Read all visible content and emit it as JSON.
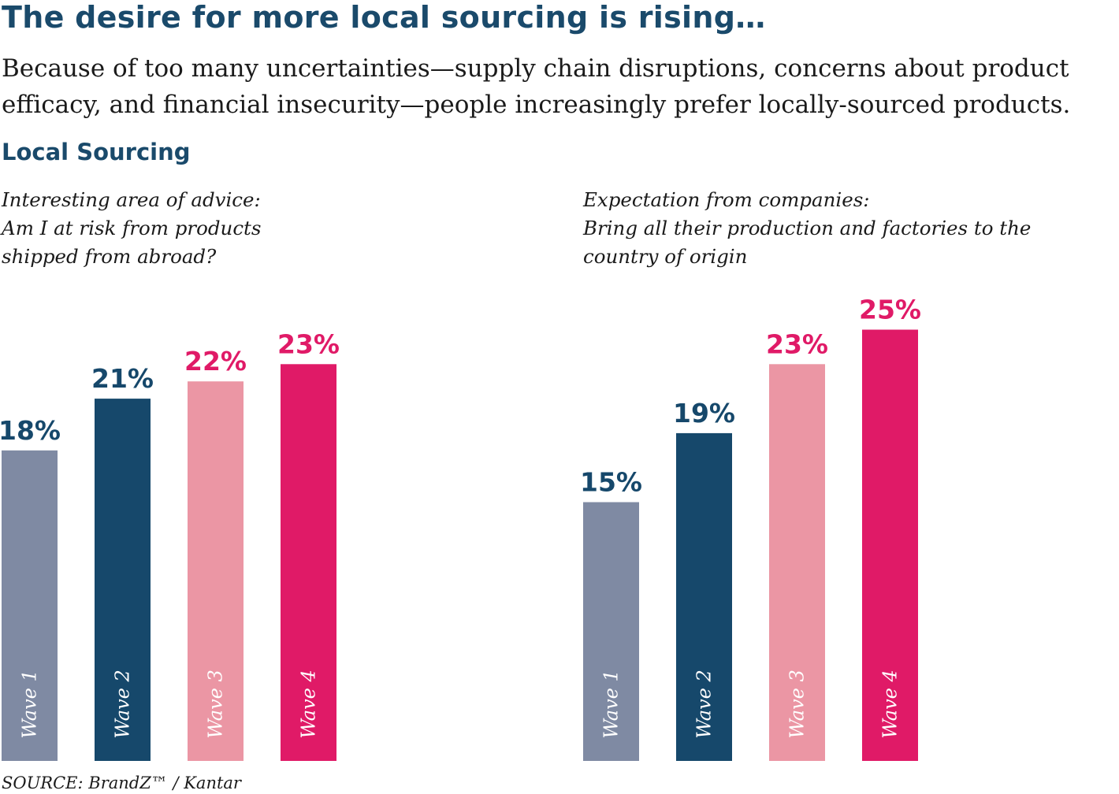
{
  "title": "The desire for more local sourcing is rising…",
  "subtitle": {
    "line1": "Because of too many uncertainties—supply chain disruptions, concerns about product",
    "line2": "efficacy, and financial insecurity—people increasingly prefer locally-sourced products."
  },
  "section_title": "Local Sourcing",
  "source": "SOURCE: BrandZ™ / Kantar",
  "colors": {
    "wave1": "#7f8aa3",
    "wave2": "#16486b",
    "wave3": "#eb96a4",
    "wave4": "#e01a67",
    "label_dark": "#16486b",
    "label_pink": "#e01a67"
  },
  "chart_data": [
    {
      "type": "bar",
      "title_lines": [
        "Interesting area of advice:",
        "Am I at risk from products",
        "shipped from abroad?"
      ],
      "categories": [
        "Wave 1",
        "Wave 2",
        "Wave 3",
        "Wave 4"
      ],
      "values": [
        18,
        21,
        22,
        23
      ],
      "value_labels": [
        "18%",
        "21%",
        "22%",
        "23%"
      ],
      "unit": "%"
    },
    {
      "type": "bar",
      "title_lines": [
        "Expectation from companies:",
        "Bring all their production and factories to the",
        "country of origin"
      ],
      "categories": [
        "Wave 1",
        "Wave 2",
        "Wave 3",
        "Wave 4"
      ],
      "values": [
        15,
        19,
        23,
        25
      ],
      "value_labels": [
        "15%",
        "19%",
        "23%",
        "25%"
      ],
      "unit": "%"
    }
  ]
}
